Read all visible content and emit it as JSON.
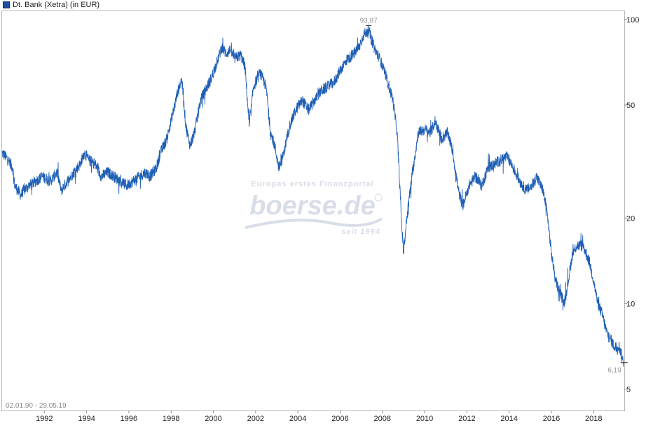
{
  "chart_data": {
    "type": "line",
    "title": "",
    "legend": {
      "label": "Dt. Bank (Xetra) (in EUR)",
      "placement": "top-left"
    },
    "date_range": "02.01.90 - 29.05.19",
    "x_ticks": [
      "1992",
      "1994",
      "1996",
      "1998",
      "2000",
      "2002",
      "2004",
      "2006",
      "2008",
      "2010",
      "2012",
      "2014",
      "2016",
      "2018"
    ],
    "y_ticks": [
      100,
      50,
      20,
      10,
      5
    ],
    "y_scale": "log",
    "ylim": [
      4.2,
      107
    ],
    "xlim": [
      1990.0,
      2019.45
    ],
    "grid": false,
    "max_label": "93,87",
    "min_label": "6,19",
    "watermark": {
      "line1": "Europas erstes Finanzportal",
      "brand": "boerse.de",
      "line2": "seit 1994"
    },
    "series": [
      {
        "color": "#1f5fb5",
        "x": [
          1990.0,
          1990.3,
          1990.5,
          1990.6,
          1990.9,
          1991.0,
          1991.3,
          1991.6,
          1991.9,
          1992.3,
          1992.6,
          1992.8,
          1993.1,
          1993.4,
          1993.7,
          1993.9,
          1994.1,
          1994.4,
          1994.7,
          1995.0,
          1995.3,
          1995.6,
          1995.9,
          1996.2,
          1996.5,
          1996.8,
          1997.0,
          1997.3,
          1997.5,
          1997.8,
          1998.0,
          1998.3,
          1998.5,
          1998.7,
          1998.9,
          1999.1,
          1999.4,
          1999.7,
          1999.9,
          2000.2,
          2000.4,
          2000.6,
          2000.8,
          2001.0,
          2001.3,
          2001.5,
          2001.7,
          2001.9,
          2002.2,
          2002.5,
          2002.7,
          2002.9,
          2003.1,
          2003.3,
          2003.6,
          2003.9,
          2004.2,
          2004.5,
          2004.8,
          2005.1,
          2005.4,
          2005.7,
          2006.0,
          2006.3,
          2006.6,
          2006.9,
          2007.1,
          2007.35,
          2007.6,
          2007.9,
          2008.2,
          2008.5,
          2008.7,
          2008.9,
          2009.0,
          2009.15,
          2009.4,
          2009.7,
          2010.0,
          2010.3,
          2010.5,
          2010.8,
          2011.1,
          2011.3,
          2011.6,
          2011.8,
          2012.1,
          2012.4,
          2012.7,
          2013.0,
          2013.3,
          2013.6,
          2013.9,
          2014.2,
          2014.5,
          2014.8,
          2015.1,
          2015.3,
          2015.6,
          2015.8,
          2016.0,
          2016.2,
          2016.4,
          2016.6,
          2016.8,
          2017.0,
          2017.2,
          2017.5,
          2017.8,
          2018.0,
          2018.2,
          2018.4,
          2018.6,
          2018.8,
          2019.0,
          2019.2,
          2019.41
        ],
        "values": [
          34,
          32,
          30,
          26,
          24,
          25,
          26,
          27,
          28,
          27,
          29,
          25,
          27,
          29,
          31,
          34,
          32,
          31,
          28,
          29,
          28,
          27,
          26,
          27,
          28,
          29,
          28,
          30,
          34,
          38,
          44,
          55,
          62,
          42,
          36,
          40,
          52,
          58,
          62,
          72,
          80,
          76,
          78,
          73,
          75,
          68,
          42,
          58,
          65,
          58,
          40,
          36,
          30,
          33,
          42,
          48,
          52,
          48,
          52,
          56,
          58,
          60,
          66,
          72,
          75,
          80,
          88,
          92,
          80,
          72,
          62,
          52,
          40,
          20,
          15,
          20,
          28,
          40,
          41,
          40,
          44,
          38,
          40,
          35,
          25,
          22,
          26,
          28,
          26,
          30,
          31,
          32,
          33,
          30,
          27,
          25,
          26,
          28,
          25,
          21,
          15,
          12,
          11,
          10,
          12,
          15,
          16,
          16,
          14,
          12,
          10,
          9.2,
          8.0,
          7.5,
          7.0,
          7.1,
          6.19
        ]
      }
    ]
  }
}
